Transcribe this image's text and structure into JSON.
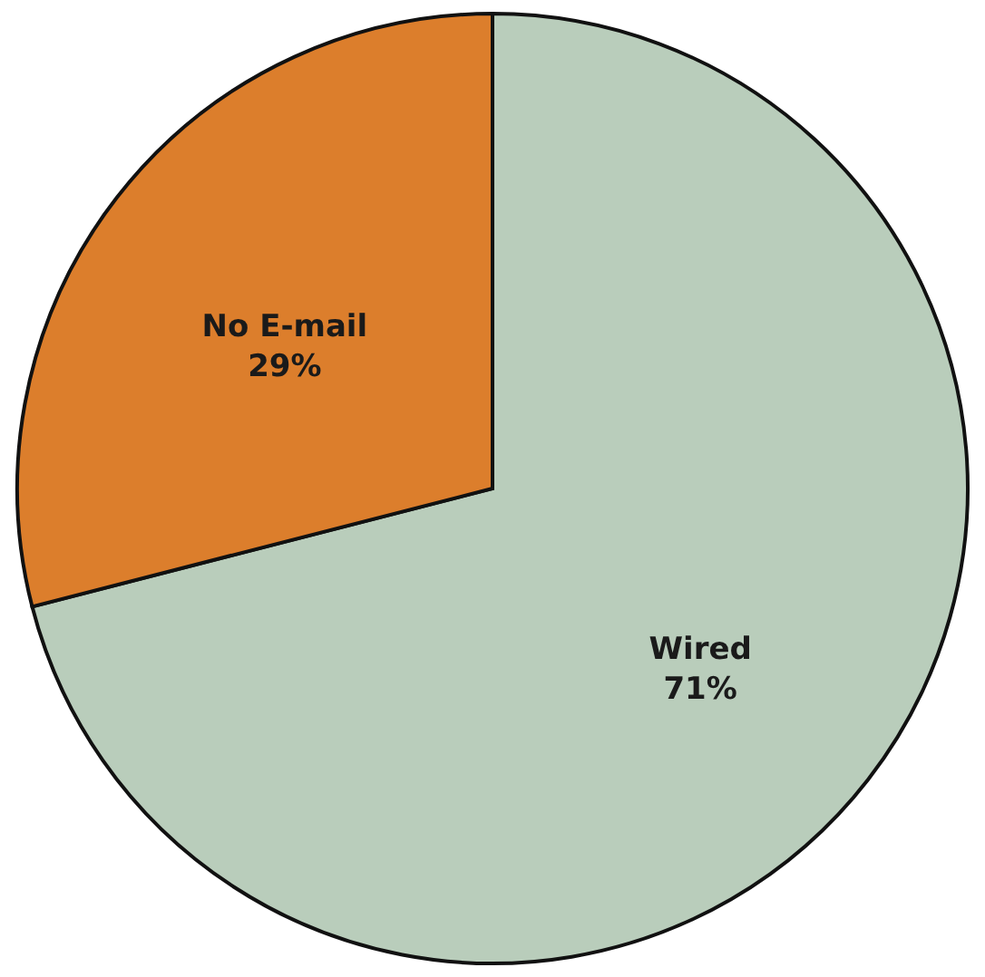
{
  "chart_data": {
    "type": "pie",
    "categories": [
      "Wired",
      "No E-mail"
    ],
    "values": [
      71,
      29
    ],
    "colors": [
      "#b9cdbb",
      "#dc7e2c"
    ],
    "value_labels": [
      "71%",
      "29%"
    ]
  }
}
